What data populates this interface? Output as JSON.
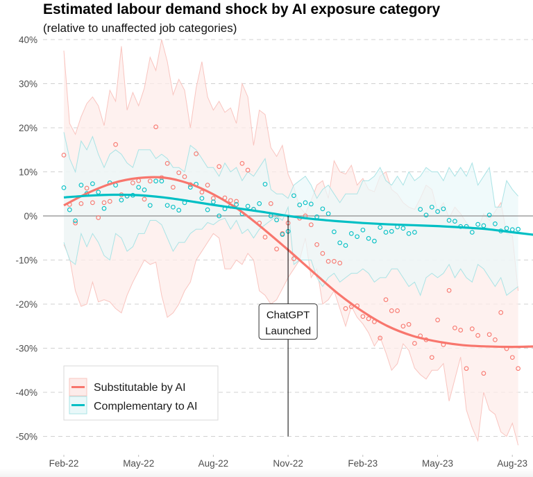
{
  "chart_data": {
    "type": "scatter",
    "title": "Estimated labour demand shock by AI exposure category",
    "subtitle": "(relative to unaffected job categories)",
    "xlabel": "",
    "ylabel": "",
    "y_unit": "percent",
    "ylim": [
      -50,
      40
    ],
    "y_ticks": [
      40,
      30,
      20,
      10,
      0,
      -10,
      -20,
      -30,
      -40,
      -50
    ],
    "y_tick_labels": [
      "40%",
      "30%",
      "20%",
      "10%",
      "0%",
      "-10%",
      "-20%",
      "-30%",
      "-40%",
      "-50%"
    ],
    "x_unit": "months since Feb-22",
    "xlim": [
      -0.3,
      19.6
    ],
    "x_ticks": [
      0,
      3,
      6,
      9,
      12,
      15,
      18
    ],
    "x_tick_labels": [
      "Feb-22",
      "May-22",
      "Aug-22",
      "Nov-22",
      "Feb-23",
      "May-23",
      "Aug-23"
    ],
    "grid": "horizontal dashed",
    "zero_line": true,
    "legend_position": "bottom-left",
    "annotation": {
      "text_line1": "ChatGPT",
      "text_line2": "Launched",
      "x": 9.0,
      "label_y": -24.5,
      "line_bottom_y": -50
    },
    "series": [
      {
        "name": "Substitutable by AI",
        "color": "#F8766D",
        "band_fill": "#FDECEA",
        "band_stroke": "#F9C4BF",
        "x_start": 0,
        "x_step": 0.2308,
        "points": [
          13.8,
          2.6,
          -1.6,
          2.8,
          6.3,
          3.0,
          -0.4,
          3.0,
          3.3,
          16.2,
          4.8,
          4.5,
          7.5,
          8.0,
          3.8,
          7.9,
          20.2,
          8.7,
          11.9,
          6.5,
          9.8,
          8.9,
          7.1,
          14.1,
          5.4,
          7.0,
          4.0,
          11.2,
          4.1,
          3.5,
          3.3,
          11.9,
          10.4,
          1.5,
          -1.6,
          -4.8,
          2.8,
          -7.5,
          -4.0,
          -1.6,
          -9.7,
          -0.5,
          0.0,
          -2.0,
          -6.5,
          -8.5,
          -10.3,
          -10.3,
          -10.7,
          -21.0,
          -20.6,
          -20.4,
          -22.8,
          -23.3,
          -24.0,
          -27.7,
          -19.0,
          -21.5,
          -21.5,
          -25.0,
          -24.6,
          -28.9,
          -27.2,
          -28.1,
          -32.1,
          -23.6,
          -29.2,
          -16.9,
          -25.4,
          -25.9,
          -34.6,
          -25.6,
          -27.1,
          -35.7,
          -26.9,
          -28.1,
          -21.9,
          -30.1,
          -32.1,
          -34.6
        ],
        "band_upper": [
          37.5,
          21,
          18.5,
          22.5,
          25.5,
          27,
          25,
          20.5,
          28.5,
          26,
          38.5,
          24,
          28,
          25,
          29,
          36,
          33,
          40,
          35,
          27.5,
          31,
          28.5,
          20,
          29,
          35,
          27,
          24,
          26,
          23.5,
          24.5,
          21,
          30,
          27,
          16,
          24,
          23,
          15.5,
          13.5,
          16,
          9.5,
          6.5,
          2,
          0.5,
          3.5,
          7,
          8,
          4,
          12.5,
          10,
          9.5,
          11.5,
          7,
          8.5,
          6,
          5.5,
          9,
          10,
          6,
          5,
          3,
          2,
          1.5,
          4,
          7,
          6,
          1,
          3,
          -0.5,
          2,
          0.5,
          -1.5,
          -3,
          -3,
          0.5,
          -1,
          1,
          3,
          -4,
          -4.5,
          -17
        ],
        "band_lower": [
          -6.5,
          -9.5,
          -17,
          -20.5,
          -20,
          -15,
          -19.5,
          -19,
          -19.5,
          -21,
          -22,
          -18,
          -15,
          -12.5,
          -10,
          -11,
          -10.5,
          -18,
          -23,
          -22,
          -20,
          -17,
          -15,
          -10,
          -8,
          -6,
          -4,
          -5,
          -12,
          -12,
          -10,
          -11,
          -8.5,
          -10,
          -17,
          -18,
          -20,
          -19,
          -16.5,
          -14,
          -12,
          -10,
          -5,
          -14,
          -12,
          -20,
          -19,
          -17,
          -21,
          -25,
          -20.5,
          -23,
          -24.5,
          -26.5,
          -29.5,
          -27.5,
          -31,
          -35,
          -33.5,
          -29,
          -30.5,
          -34.5,
          -36,
          -37,
          -35,
          -35,
          -33.5,
          -42,
          -37,
          -32,
          -44,
          -48,
          -51,
          -40,
          -44,
          -45,
          -49,
          -50,
          -47,
          -52
        ]
      },
      {
        "name": "Complementary to AI",
        "color": "#00BFC4",
        "band_fill": "#E9F8F9",
        "band_stroke": "#A9E3E5",
        "x_start": 0,
        "x_step": 0.2308,
        "points": [
          6.4,
          1.4,
          -1.1,
          7.0,
          5.1,
          7.3,
          5.4,
          1.7,
          7.5,
          7.0,
          3.6,
          4.5,
          4.7,
          6.5,
          5.9,
          2.4,
          7.9,
          7.9,
          2.4,
          2.0,
          1.3,
          3.0,
          6.5,
          7.2,
          4.0,
          1.4,
          3.2,
          0.0,
          1.6,
          2.2,
          2.6,
          0.5,
          2.2,
          1.5,
          2.8,
          7.2,
          0.0,
          -0.9,
          -4.2,
          -3.5,
          4.6,
          2.5,
          3.0,
          2.7,
          -0.2,
          1.6,
          0.5,
          -3.6,
          -6.1,
          -6.7,
          -4.0,
          -4.7,
          -3.2,
          -5.1,
          -5.7,
          -2.6,
          -3.7,
          -3.5,
          -2.5,
          -2.8,
          -4.0,
          -3.7,
          1.5,
          0.2,
          2.0,
          1.0,
          1.6,
          -1.0,
          -1.2,
          -2.4,
          -2.4,
          -3.7,
          -1.9,
          -2.2,
          0.2,
          -1.8,
          -3.4,
          -2.8,
          -3.1,
          -3.0
        ],
        "band_upper": [
          19,
          13,
          10,
          17,
          15,
          18,
          14,
          11,
          14,
          15,
          14,
          12,
          11,
          15,
          15,
          15,
          13,
          14,
          13,
          11,
          11,
          10,
          16,
          15,
          13,
          11,
          11,
          9,
          12,
          10,
          11,
          8,
          10,
          9,
          11,
          13,
          6,
          5,
          5,
          4,
          7,
          8,
          9,
          7,
          4,
          6,
          7,
          5,
          3,
          5,
          5,
          5,
          8,
          8,
          9,
          11,
          8,
          7,
          9,
          7,
          10,
          8,
          9,
          11,
          10,
          10,
          8,
          11,
          9,
          11,
          9,
          12,
          7,
          9,
          11,
          2,
          2,
          8,
          6,
          4.5
        ],
        "band_lower": [
          -6,
          -10,
          -11,
          -4,
          -7,
          -4,
          -6,
          -9,
          -10,
          -4,
          -5,
          -8,
          -7,
          -4,
          -4,
          -1,
          -1,
          -2,
          -5,
          -8,
          -6,
          -6,
          -4,
          -3,
          -3,
          -1.5,
          -2,
          -1,
          -0.5,
          -3,
          -1,
          -4,
          -3,
          -5,
          -3,
          -2,
          -1,
          0,
          -1,
          2,
          -11,
          -10,
          -10,
          -10,
          -14,
          -16,
          -14,
          -13,
          -15,
          -14,
          -13,
          -13,
          -12,
          -13,
          -15,
          -14,
          -14,
          -12,
          -12,
          -14,
          -16,
          -15,
          -18,
          -14,
          -13,
          -14,
          -13,
          -11,
          -14,
          -12,
          -14,
          -15,
          -11,
          -12,
          -14,
          -16,
          -14,
          -18,
          -17,
          -16
        ]
      }
    ],
    "fitted": [
      {
        "name": "Substitutable by AI",
        "x": [
          0,
          1,
          2,
          3,
          4,
          5,
          6,
          7,
          8,
          9,
          10,
          11,
          12,
          13,
          14,
          15,
          16,
          17,
          18,
          18.9
        ],
        "y": [
          2.4,
          5.3,
          7.5,
          8.6,
          8.7,
          7.4,
          4.9,
          1.5,
          -2.9,
          -7.7,
          -12.7,
          -17.6,
          -21.7,
          -25.0,
          -27.2,
          -28.5,
          -29.3,
          -29.6,
          -29.7,
          -29.6
        ]
      },
      {
        "name": "Complementary to AI",
        "x": [
          0,
          1,
          2,
          3,
          4,
          5,
          6,
          7,
          8,
          9,
          10,
          11,
          12,
          13,
          14,
          15,
          16,
          17,
          18,
          18.9
        ],
        "y": [
          4.2,
          4.6,
          4.8,
          4.7,
          4.2,
          3.4,
          2.5,
          1.7,
          0.9,
          0.0,
          -0.7,
          -1.2,
          -1.6,
          -1.9,
          -2.1,
          -2.3,
          -2.6,
          -3.0,
          -3.7,
          -4.3
        ]
      }
    ]
  }
}
